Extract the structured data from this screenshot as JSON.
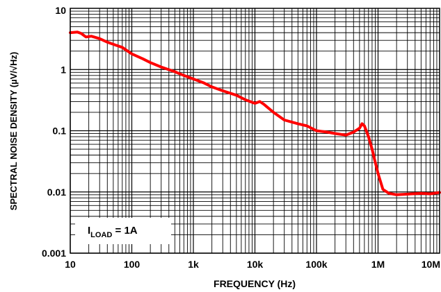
{
  "chart_data": {
    "type": "line",
    "title": "",
    "xlabel": "FREQUENCY (Hz)",
    "ylabel": "SPECTRAL NOISE DENSITY (µV/√Hz)",
    "x_scale": "log",
    "y_scale": "log",
    "xlim": [
      10,
      10000000
    ],
    "ylim": [
      0.001,
      10
    ],
    "grid": true,
    "x_ticks": [
      10,
      100,
      1000,
      10000,
      100000,
      1000000,
      10000000
    ],
    "x_tick_labels": [
      "10",
      "100",
      "1k",
      "10k",
      "100k",
      "1M",
      "10M"
    ],
    "y_ticks": [
      0.001,
      0.01,
      0.1,
      1,
      10
    ],
    "y_tick_labels": [
      "0.001",
      "0.01",
      "0.1",
      "1",
      "10"
    ],
    "annotation": {
      "main": "I",
      "sub": "LOAD",
      "rest": " = 1A"
    },
    "line_color": "#ff0000",
    "series": [
      {
        "x": [
          10,
          13,
          15,
          18,
          22,
          30,
          40,
          55,
          70,
          80,
          100,
          150,
          200,
          300,
          500,
          700,
          1000,
          1500,
          2000,
          3000,
          5000,
          7000,
          10000,
          12000,
          14000,
          20000,
          30000,
          50000,
          70000,
          100000,
          150000,
          200000,
          300000,
          400000,
          500000,
          550000,
          600000,
          700000,
          800000,
          1000000,
          1200000,
          1500000,
          2000000,
          3000000,
          5000000,
          7000000,
          10000000
        ],
        "y": [
          4.0,
          4.1,
          3.9,
          3.4,
          3.5,
          3.2,
          2.8,
          2.5,
          2.3,
          2.1,
          1.8,
          1.5,
          1.3,
          1.1,
          0.92,
          0.8,
          0.7,
          0.6,
          0.52,
          0.45,
          0.38,
          0.32,
          0.28,
          0.3,
          0.27,
          0.2,
          0.15,
          0.13,
          0.12,
          0.1,
          0.095,
          0.09,
          0.085,
          0.095,
          0.11,
          0.13,
          0.12,
          0.08,
          0.05,
          0.02,
          0.011,
          0.0095,
          0.009,
          0.0092,
          0.0095,
          0.0093,
          0.0098
        ]
      }
    ]
  }
}
